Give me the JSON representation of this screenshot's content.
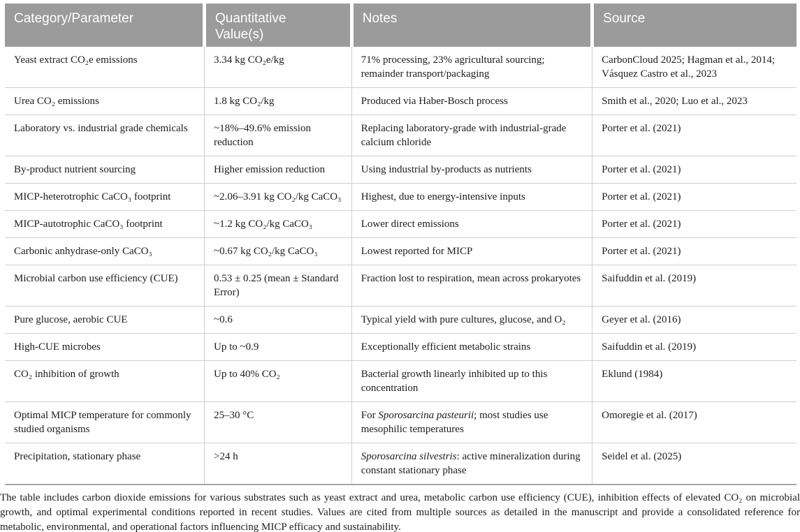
{
  "header": {
    "columns": [
      "Category/Parameter",
      "Quantitative Value(s)",
      "Notes",
      "Source"
    ]
  },
  "rows": [
    {
      "category": "Yeast extract CO₂e emissions",
      "value": "3.34 kg CO₂e/kg",
      "notes": "71% processing, 23% agricultural sourcing; remainder transport/packaging",
      "source": "CarbonCloud 2025; Hagman et al., 2014; Vásquez Castro et al., 2023"
    },
    {
      "category": "Urea CO₂ emissions",
      "value": "1.8 kg CO₂/kg",
      "notes": "Produced via Haber-Bosch process",
      "source": "Smith et al., 2020; Luo et al., 2023"
    },
    {
      "category": "Laboratory vs. industrial grade chemicals",
      "value": "~18%–49.6% emission reduction",
      "notes": "Replacing laboratory-grade with industrial-grade calcium chloride",
      "source": "Porter et al. (2021)"
    },
    {
      "category": "By-product nutrient sourcing",
      "value": "Higher emission reduction",
      "notes": "Using industrial by-products as nutrients",
      "source": "Porter et al. (2021)"
    },
    {
      "category": "MICP-heterotrophic CaCO₃ footprint",
      "value": "~2.06–3.91 kg CO₂/kg CaCO₃",
      "notes": "Highest, due to energy-intensive inputs",
      "source": "Porter et al. (2021)"
    },
    {
      "category": "MICP-autotrophic CaCO₃ footprint",
      "value": "~1.2 kg CO₂/kg CaCO₃",
      "notes": "Lower direct emissions",
      "source": "Porter et al. (2021)"
    },
    {
      "category": "Carbonic anhydrase-only CaCO₃",
      "value": "~0.67 kg CO₂/kg CaCO₃",
      "notes": "Lowest reported for MICP",
      "source": "Porter et al. (2021)"
    },
    {
      "category": "Microbial carbon use efficiency (CUE)",
      "value": "0.53 ± 0.25 (mean ± Standard Error)",
      "notes": "Fraction lost to respiration, mean across prokaryotes",
      "source": "Saifuddin et al. (2019)"
    },
    {
      "category": "Pure glucose, aerobic CUE",
      "value": "~0.6",
      "notes": "Typical yield with pure cultures, glucose, and O₂",
      "source": "Geyer et al. (2016)"
    },
    {
      "category": "High-CUE microbes",
      "value": "Up to ~0.9",
      "notes": "Exceptionally efficient metabolic strains",
      "source": "Saifuddin et al. (2019)"
    },
    {
      "category": "CO₂ inhibition of growth",
      "value": "Up to 40% CO₂",
      "notes": "Bacterial growth linearly inhibited up to this concentration",
      "source": "Eklund (1984)"
    },
    {
      "category": "Optimal MICP temperature for commonly studied organisms",
      "value": "25–30 °C",
      "notes": [
        {
          "text": "For ",
          "italic": false
        },
        {
          "text": "Sporosarcina pasteurii",
          "italic": true
        },
        {
          "text": "; most studies use mesophilic temperatures",
          "italic": false
        }
      ],
      "source": "Omoregie et al. (2017)"
    },
    {
      "category": "Precipitation, stationary phase",
      "value": ">24 h",
      "notes": [
        {
          "text": "Sporosarcina silvestris",
          "italic": true
        },
        {
          "text": ": active mineralization during constant stationary phase",
          "italic": false
        }
      ],
      "source": "Seidel et al. (2025)"
    }
  ],
  "caption": "The table includes carbon dioxide emissions for various substrates such as yeast extract and urea, metabolic carbon use efficiency (CUE), inhibition effects of elevated CO₂ on microbial growth, and optimal experimental conditions reported in recent studies. Values are cited from multiple sources as detailed in the manuscript and provide a consolidated reference for metabolic, environmental, and operational factors influencing MICP efficacy and sustainability.",
  "colors": {
    "header_bg": "#9b9b9b",
    "header_text": "#ffffff",
    "row_border": "#cfcfcf",
    "body_text": "#1c1c1c"
  }
}
